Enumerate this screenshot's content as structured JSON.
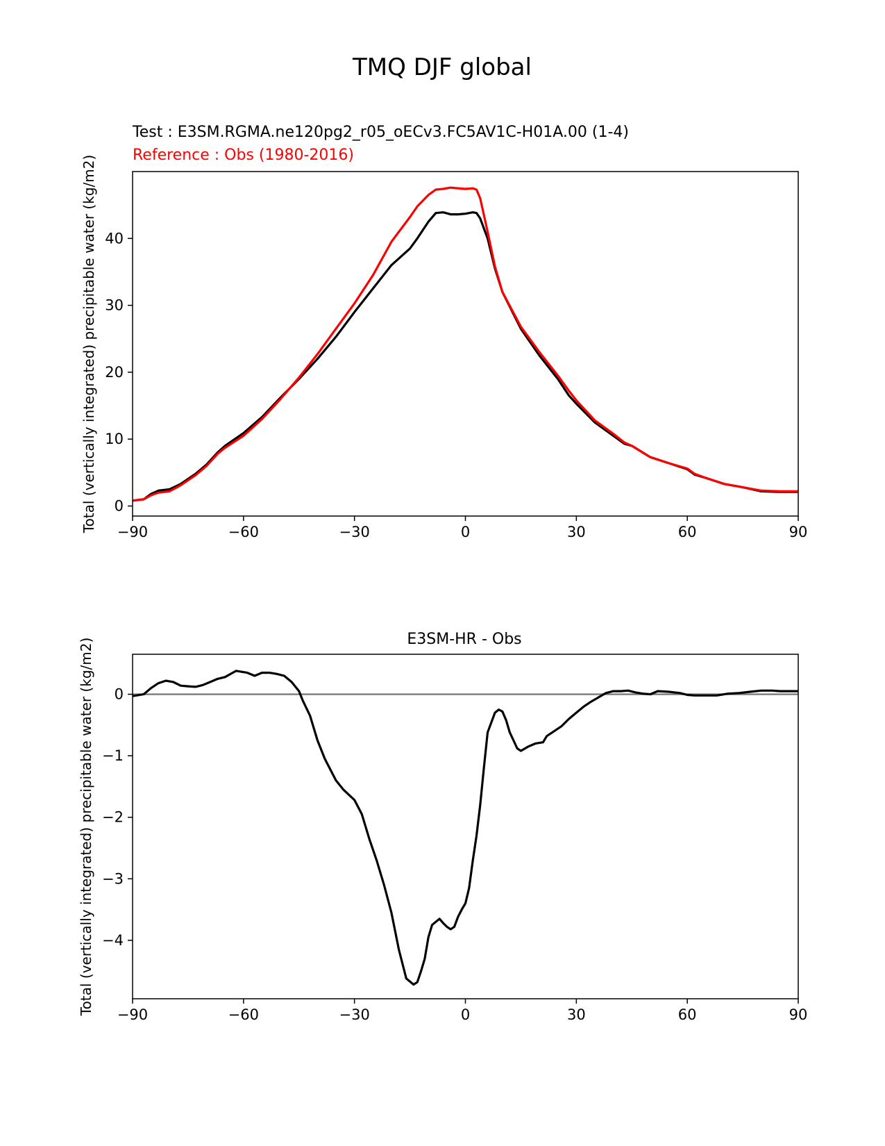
{
  "figure": {
    "title": "TMQ DJF global"
  },
  "chart_data": [
    {
      "type": "line",
      "title_test": "Test : E3SM.RGMA.ne120pg2_r05_oECv3.FC5AV1C-H01A.00 (1-4)",
      "title_reference": "Reference : Obs (1980-2016)",
      "xlabel": "",
      "ylabel": "Total (vertically integrated) precipitable water (kg/m2)",
      "xlim": [
        -90,
        90
      ],
      "ylim": [
        -1.5,
        50
      ],
      "xticks": [
        -90,
        -60,
        -30,
        0,
        30,
        60,
        90
      ],
      "xtick_labels": [
        "−90",
        "−60",
        "−30",
        "0",
        "30",
        "60",
        "90"
      ],
      "yticks": [
        0,
        10,
        20,
        30,
        40
      ],
      "ytick_labels": [
        "0",
        "10",
        "20",
        "30",
        "40"
      ],
      "series": [
        {
          "name": "Test",
          "color": "#000000",
          "x": [
            -90,
            -87,
            -85,
            -83,
            -80,
            -77,
            -73,
            -70,
            -67,
            -65,
            -60,
            -55,
            -50,
            -45,
            -40,
            -35,
            -30,
            -25,
            -20,
            -15,
            -13,
            -10,
            -8,
            -6,
            -4,
            -2,
            0,
            2,
            3,
            4,
            6,
            8,
            10,
            15,
            20,
            25,
            28,
            30,
            35,
            40,
            43,
            45,
            50,
            55,
            60,
            62,
            65,
            70,
            75,
            80,
            85,
            90
          ],
          "y": [
            0.8,
            1.0,
            1.8,
            2.3,
            2.5,
            3.3,
            4.8,
            6.2,
            8.0,
            9.0,
            10.9,
            13.3,
            16.2,
            19.0,
            22.0,
            25.3,
            29.0,
            32.5,
            36.0,
            38.5,
            40.0,
            42.5,
            43.8,
            43.9,
            43.6,
            43.6,
            43.7,
            43.9,
            43.8,
            43.0,
            40.0,
            35.5,
            32.0,
            26.5,
            22.5,
            19.0,
            16.5,
            15.3,
            12.5,
            10.5,
            9.3,
            9.0,
            7.3,
            6.4,
            5.5,
            4.7,
            4.2,
            3.3,
            2.8,
            2.2,
            2.1,
            2.1
          ]
        },
        {
          "name": "Reference",
          "color": "#ff0000",
          "x": [
            -90,
            -87,
            -85,
            -83,
            -80,
            -77,
            -73,
            -70,
            -67,
            -65,
            -60,
            -55,
            -50,
            -45,
            -40,
            -35,
            -30,
            -25,
            -20,
            -15,
            -13,
            -10,
            -8,
            -6,
            -4,
            -2,
            0,
            2,
            3,
            4,
            6,
            8,
            10,
            15,
            20,
            25,
            28,
            30,
            35,
            40,
            43,
            45,
            50,
            55,
            60,
            62,
            65,
            70,
            75,
            80,
            85,
            90
          ],
          "y": [
            0.8,
            1.0,
            1.6,
            2.0,
            2.2,
            3.1,
            4.6,
            6.0,
            7.8,
            8.7,
            10.5,
            13.0,
            16.0,
            19.2,
            22.7,
            26.5,
            30.3,
            34.5,
            39.5,
            43.2,
            44.8,
            46.5,
            47.3,
            47.4,
            47.6,
            47.5,
            47.4,
            47.5,
            47.3,
            46.0,
            41.0,
            35.8,
            32.0,
            26.8,
            23.0,
            19.5,
            17.2,
            15.8,
            12.8,
            10.8,
            9.5,
            9.0,
            7.3,
            6.4,
            5.6,
            4.8,
            4.2,
            3.3,
            2.8,
            2.3,
            2.2,
            2.2
          ]
        }
      ]
    },
    {
      "type": "line",
      "title": "E3SM-HR - Obs",
      "xlabel": "",
      "ylabel": "Total (vertically integrated) precipitable water (kg/m2)",
      "xlim": [
        -90,
        90
      ],
      "ylim": [
        -4.95,
        0.65
      ],
      "xticks": [
        -90,
        -60,
        -30,
        0,
        30,
        60,
        90
      ],
      "xtick_labels": [
        "−90",
        "−60",
        "−30",
        "0",
        "30",
        "60",
        "90"
      ],
      "yticks": [
        0,
        -1,
        -2,
        -3,
        -4
      ],
      "ytick_labels": [
        "0",
        "−1",
        "−2",
        "−3",
        "−4"
      ],
      "zero_line_color": "#808080",
      "series": [
        {
          "name": "E3SM-HR - Obs",
          "color": "#000000",
          "x": [
            -90,
            -87,
            -85,
            -83,
            -81,
            -79,
            -77,
            -75,
            -73,
            -71,
            -69,
            -67,
            -65,
            -62,
            -59,
            -57,
            -55,
            -53,
            -51,
            -49,
            -47,
            -45,
            -44,
            -42,
            -40,
            -38,
            -35,
            -33,
            -30,
            -28,
            -26,
            -24,
            -22,
            -20,
            -18,
            -16,
            -14,
            -13,
            -12,
            -11,
            -10,
            -9,
            -7,
            -6,
            -5,
            -4,
            -3,
            -2,
            -1,
            0,
            1,
            2,
            3,
            4,
            5,
            6,
            8,
            9,
            10,
            11,
            12,
            13,
            14,
            15,
            17,
            19,
            21,
            22,
            24,
            26,
            28,
            30,
            32,
            34,
            36,
            38,
            40,
            42,
            44,
            46,
            48,
            50,
            52,
            55,
            58,
            60,
            62,
            65,
            68,
            71,
            74,
            77,
            80,
            83,
            85,
            87,
            90
          ],
          "y": [
            -0.03,
            0.0,
            0.1,
            0.18,
            0.22,
            0.2,
            0.14,
            0.13,
            0.12,
            0.15,
            0.2,
            0.25,
            0.28,
            0.38,
            0.35,
            0.3,
            0.35,
            0.35,
            0.33,
            0.3,
            0.2,
            0.05,
            -0.1,
            -0.35,
            -0.75,
            -1.05,
            -1.4,
            -1.55,
            -1.72,
            -1.95,
            -2.35,
            -2.7,
            -3.1,
            -3.55,
            -4.15,
            -4.62,
            -4.72,
            -4.68,
            -4.5,
            -4.3,
            -3.95,
            -3.75,
            -3.65,
            -3.72,
            -3.78,
            -3.82,
            -3.78,
            -3.62,
            -3.5,
            -3.4,
            -3.15,
            -2.7,
            -2.3,
            -1.8,
            -1.2,
            -0.62,
            -0.3,
            -0.25,
            -0.28,
            -0.42,
            -0.62,
            -0.75,
            -0.88,
            -0.92,
            -0.85,
            -0.8,
            -0.78,
            -0.68,
            -0.6,
            -0.52,
            -0.4,
            -0.3,
            -0.2,
            -0.12,
            -0.05,
            0.02,
            0.05,
            0.05,
            0.06,
            0.03,
            0.01,
            0.0,
            0.05,
            0.04,
            0.02,
            -0.01,
            -0.02,
            -0.02,
            -0.02,
            0.01,
            0.02,
            0.04,
            0.06,
            0.06,
            0.05,
            0.05,
            0.05
          ]
        }
      ]
    }
  ]
}
